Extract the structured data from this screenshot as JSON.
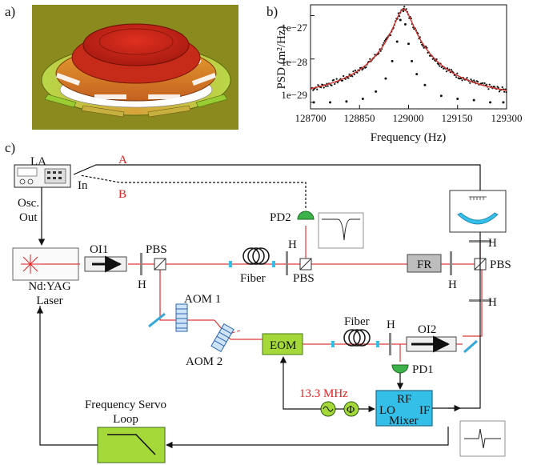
{
  "panels": {
    "a": "a)",
    "b": "b)",
    "c": "c)"
  },
  "colors": {
    "beam": "#e03a3a",
    "box_green": "#a5d93a",
    "box_cyan": "#33bfe8",
    "box_gray": "#bdbdbd",
    "pd_green": "#3cb34a",
    "signal_red": "#e0201e"
  },
  "panel_b": {
    "ylabel": "PSD (m²/Hz)",
    "xlabel": "Frequency (Hz)",
    "xticks": [
      "128700",
      "128850",
      "129000",
      "129150",
      "129300"
    ],
    "yticks": [
      "1e−27",
      "1e−28",
      "1e−29"
    ]
  },
  "chart_data": {
    "type": "scatter",
    "xlabel": "Frequency (Hz)",
    "ylabel": "PSD (m²/Hz)",
    "xlim": [
      128700,
      129300
    ],
    "ylim_log10": [
      -29.15,
      -26.75
    ],
    "log_y": true,
    "series": [
      {
        "kind": "points",
        "color": "#111111",
        "x": [
          128710,
          128760,
          128810,
          128860,
          128900,
          128930,
          128950,
          128965,
          128975,
          128985,
          128990,
          129000,
          129010,
          129025,
          129050,
          129100,
          129150,
          129200,
          129250,
          129290
        ],
        "y_log10": [
          -29.0,
          -29.0,
          -28.98,
          -28.92,
          -28.75,
          -28.45,
          -28.05,
          -27.6,
          -27.1,
          -26.85,
          -27.2,
          -27.65,
          -28.05,
          -28.35,
          -28.6,
          -28.85,
          -28.92,
          -28.95,
          -29.0,
          -29.0
        ]
      },
      {
        "kind": "fit",
        "color": "#d0302a",
        "center": 128985,
        "width": 25,
        "floor_log10": -29.0,
        "peak_log10": -26.85
      }
    ]
  },
  "diagram": {
    "la": "LA",
    "in": "In",
    "a": "A",
    "b": "B",
    "osc": "Osc.",
    "out": "Out",
    "laser1": "Nd:YAG",
    "laser2": "Laser",
    "oi1": "OI1",
    "pbs1": "PBS",
    "h1": "H",
    "aom1": "AOM 1",
    "aom2": "AOM 2",
    "fiber1": "Fiber",
    "h2": "H",
    "pd2": "PD2",
    "pbs2": "PBS",
    "fr": "FR",
    "h3": "H",
    "h4": "H",
    "pbs3": "PBS",
    "h5": "H",
    "eom": "EOM",
    "fiber2": "Fiber",
    "h6": "H",
    "oi2": "OI2",
    "pd1": "PD1",
    "mhz": "13.3 MHz",
    "phi": "Φ",
    "rf": "RF",
    "lo": "LO",
    "if": "IF",
    "mixer": "Mixer",
    "servo1": "Frequency Servo",
    "servo2": "Loop"
  }
}
